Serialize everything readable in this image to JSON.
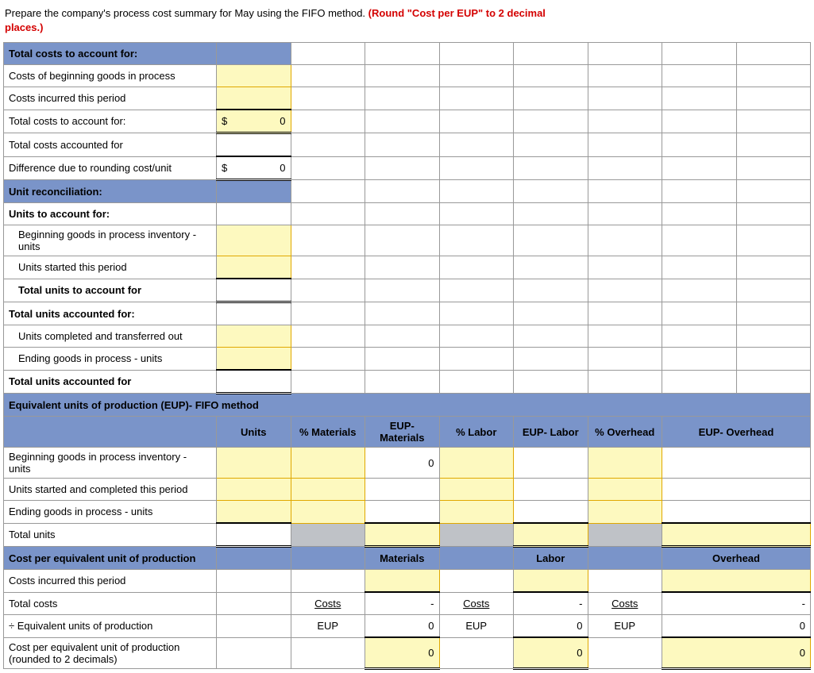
{
  "instructions": {
    "main": "Prepare the company's process cost summary for May using the FIFO method. ",
    "emph": "(Round \"Cost per EUP\" to 2 decimal places.)"
  },
  "rows": {
    "sec1": "Total costs to account for:",
    "r1": "Costs of beginning goods in process",
    "r2": "Costs incurred this period",
    "r3": "Total costs to account for:",
    "r3v": "0",
    "r4": "Total costs accounted for",
    "r5": "Difference due to rounding cost/unit",
    "r5v": "0",
    "sec2": "Unit reconciliation:",
    "r6": "Units to account for:",
    "r7": "Beginning goods in process inventory - units",
    "r8": "Units started this period",
    "r9": "Total units to account for",
    "r10": "Total units accounted for:",
    "r11": "Units completed and transferred out",
    "r12": "Ending goods in process - units",
    "r13": "Total units accounted for",
    "sec3": "Equivalent units of production (EUP)- FIFO method",
    "h_units": "Units",
    "h_pm": "% Materials",
    "h_em": "EUP- Materials",
    "h_pl": "% Labor",
    "h_el": "EUP- Labor",
    "h_po": "% Overhead",
    "h_eo": "EUP- Overhead",
    "r14": "Beginning goods in process inventory - units",
    "r14v": "0",
    "r15": "Units started and completed this period",
    "r16": "Ending goods in process - units",
    "r17": "Total units",
    "sec4": "Cost per equivalent unit of production",
    "h_mat": "Materials",
    "h_lab": "Labor",
    "h_ovh": "Overhead",
    "r18": "Costs incurred this period",
    "r19": "Total costs",
    "costs_lbl": "Costs",
    "dash": "-",
    "r20": "÷ Equivalent units of production",
    "eup_lbl": "EUP",
    "zero": "0",
    "r21": "Cost per equivalent unit of production (rounded to 2 decimals)"
  },
  "currency": "$",
  "colors": {
    "section_bg": "#7a94c9",
    "input_bg": "#fdf9bf",
    "input_border": "#e0a800",
    "shade": "#bfc2c7"
  }
}
